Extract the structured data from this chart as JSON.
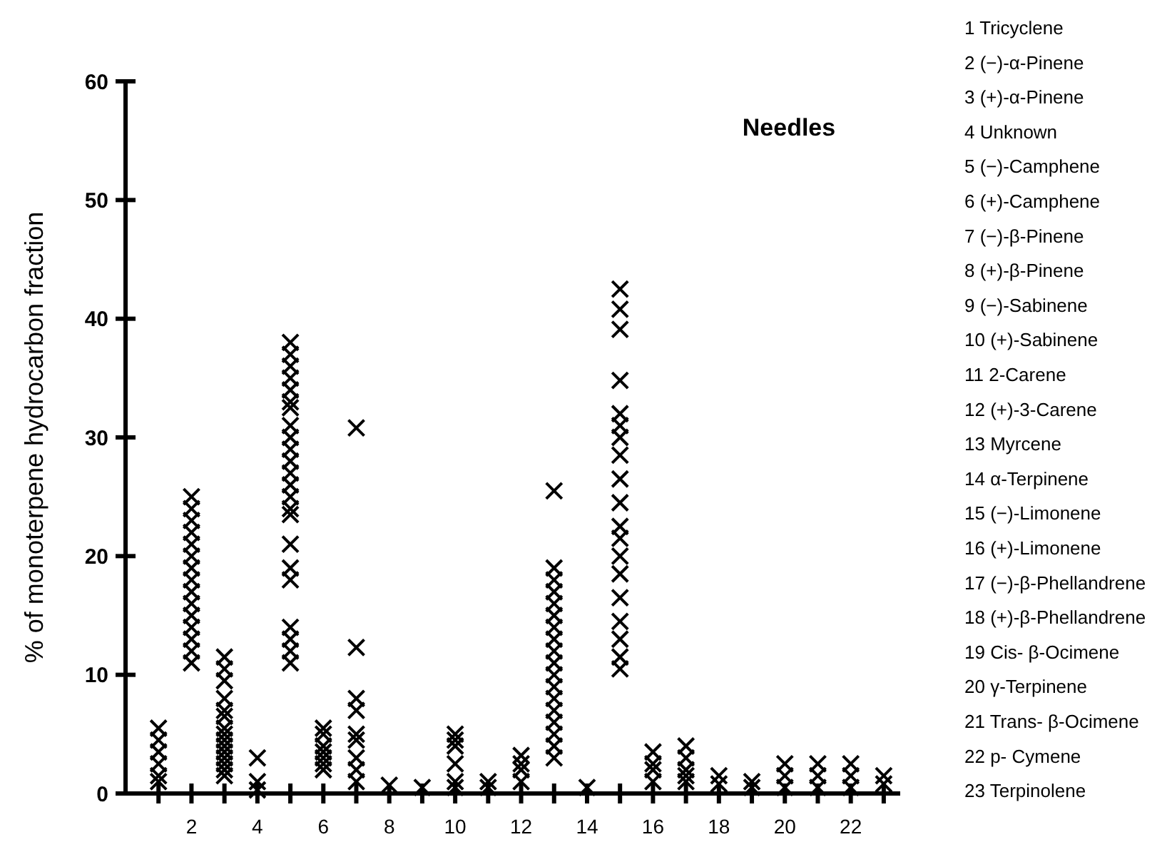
{
  "chart_data": {
    "type": "scatter",
    "title": "Needles",
    "ylabel": "% of monoterpene hydrocarbon fraction",
    "xlim": [
      0,
      23.5
    ],
    "ylim": [
      0,
      60
    ],
    "xticks": [
      {
        "value": 1,
        "label": null
      },
      2,
      {
        "value": 3,
        "label": null
      },
      4,
      {
        "value": 5,
        "label": null
      },
      6,
      {
        "value": 7,
        "label": null
      },
      8,
      {
        "value": 9,
        "label": null
      },
      10,
      {
        "value": 11,
        "label": null
      },
      12,
      {
        "value": 13,
        "label": null
      },
      14,
      {
        "value": 15,
        "label": null
      },
      16,
      {
        "value": 17,
        "label": null
      },
      18,
      {
        "value": 19,
        "label": null
      },
      20,
      {
        "value": 21,
        "label": null
      },
      22,
      {
        "value": 23,
        "label": null
      }
    ],
    "yticks": [
      0,
      10,
      20,
      30,
      40,
      50,
      60
    ],
    "grid": false,
    "marker": "cross",
    "series": [
      {
        "color": "#000000",
        "x": [
          1,
          1,
          1,
          1,
          1,
          1,
          2,
          2,
          2,
          2,
          2,
          2,
          2,
          2,
          2,
          2,
          2,
          2,
          2,
          2,
          2,
          3,
          3,
          3,
          3,
          3,
          3,
          3,
          3,
          3,
          3,
          3,
          3,
          3,
          3,
          3,
          4,
          4,
          4,
          5,
          5,
          5,
          5,
          5,
          5,
          5,
          5,
          5,
          5,
          5,
          5,
          5,
          5,
          5,
          5,
          5,
          5,
          5,
          5,
          5,
          5,
          5,
          6,
          6,
          6,
          6,
          6,
          6,
          6,
          7,
          7,
          7,
          7,
          7,
          7,
          7,
          7,
          7,
          8,
          9,
          10,
          10,
          10,
          10,
          10,
          10,
          11,
          11,
          12,
          12,
          12,
          12,
          13,
          13,
          13,
          13,
          13,
          13,
          13,
          13,
          13,
          13,
          13,
          13,
          13,
          13,
          13,
          13,
          13,
          13,
          14,
          15,
          15,
          15,
          15,
          15,
          15,
          15,
          15,
          15,
          15,
          15,
          15,
          15,
          15,
          15,
          15,
          15,
          15,
          15,
          16,
          16,
          16,
          16,
          17,
          17,
          17,
          17,
          17,
          18,
          18,
          19,
          19,
          20,
          20,
          20,
          21,
          21,
          21,
          22,
          22,
          22,
          23,
          23
        ],
        "values": [
          5.5,
          4.5,
          3.5,
          2.5,
          1.5,
          1,
          25,
          24,
          23,
          22,
          21,
          20,
          19,
          18,
          17,
          16,
          15,
          14,
          13,
          12,
          11,
          11.5,
          10.5,
          9.5,
          8,
          7,
          6.5,
          5.5,
          5,
          4.5,
          4,
          3.5,
          3,
          2.5,
          2,
          1.5,
          3,
          1,
          0.3,
          38,
          37,
          36,
          35,
          34,
          33,
          32.5,
          31,
          30,
          29,
          28,
          27,
          26,
          25,
          24,
          23.5,
          21,
          19,
          18,
          14,
          13,
          12,
          11,
          5.5,
          5,
          4,
          3.5,
          3,
          2.5,
          2,
          30.8,
          12.3,
          8,
          7,
          5,
          4.5,
          3,
          2,
          1,
          0.7,
          0.5,
          5,
          4.5,
          4,
          2.5,
          1,
          0.5,
          1,
          0.5,
          3.2,
          2.5,
          2,
          1,
          25.5,
          19,
          18,
          17,
          16,
          15,
          14,
          13,
          12,
          11,
          10,
          9,
          8,
          7,
          6,
          5,
          4,
          3,
          0.5,
          42.5,
          40.8,
          39.1,
          34.8,
          32,
          31,
          30,
          28.5,
          26.5,
          24.5,
          22.5,
          21.5,
          20,
          18.5,
          16.5,
          14.5,
          13,
          11.5,
          10.5,
          3.5,
          2.5,
          2,
          1,
          4,
          3,
          2,
          1.5,
          1,
          1.5,
          0.8,
          1,
          0.5,
          2.5,
          1.5,
          0.5,
          2.5,
          1.5,
          0.5,
          2.5,
          1.5,
          0.5,
          1.5,
          0.8
        ]
      }
    ],
    "annotations": [
      "1 Tricyclene",
      "2 (−)-α-Pinene",
      "3 (+)-α-Pinene",
      "4 Unknown",
      "5 (−)-Camphene",
      "6 (+)-Camphene",
      "7 (−)-β-Pinene",
      "8 (+)-β-Pinene",
      "9 (−)-Sabinene",
      "10 (+)-Sabinene",
      "11 2-Carene",
      "12 (+)-3-Carene",
      "13 Myrcene",
      "14 α-Terpinene",
      "15 (−)-Limonene",
      "16 (+)-Limonene",
      "17 (−)-β-Phellandrene",
      "18 (+)-β-Phellandrene",
      "19 Cis- β-Ocimene",
      "20 γ-Terpinene",
      "21 Trans- β-Ocimene",
      "22 p- Cymene",
      "23 Terpinolene"
    ]
  }
}
